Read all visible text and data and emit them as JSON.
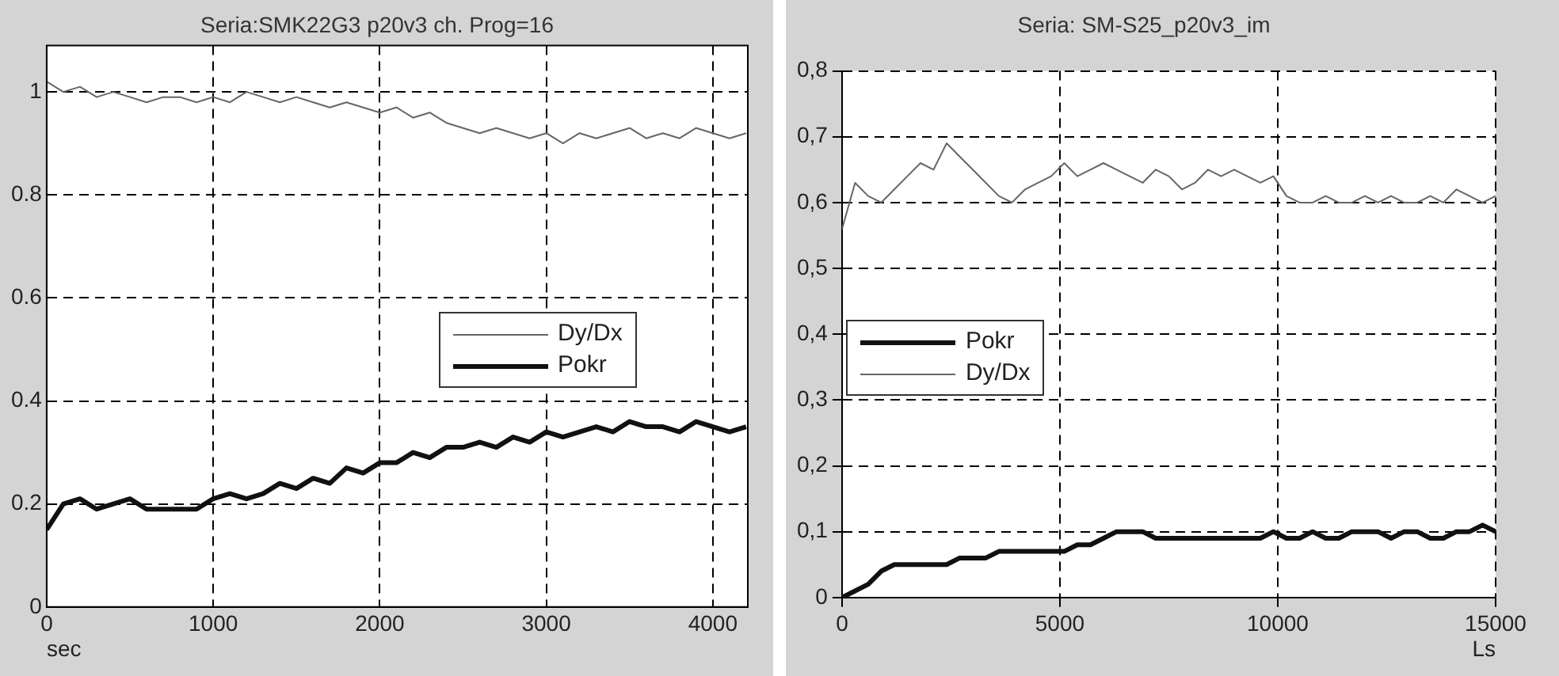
{
  "chart_data": [
    {
      "type": "line",
      "title": "Seria:SMK22G3 p20v3 ch. Prog=16",
      "xlabel": "sec",
      "xlim": [
        0,
        4210
      ],
      "xticks": [
        0,
        1000,
        2000,
        3000,
        4000
      ],
      "ylim": [
        0,
        1.09
      ],
      "yticks": [
        0,
        0.2,
        0.4,
        0.6,
        0.8,
        1
      ],
      "grid": true,
      "legend": "right",
      "marker": "none",
      "x": [
        0,
        100,
        200,
        300,
        400,
        500,
        600,
        700,
        800,
        900,
        1000,
        1100,
        1200,
        1300,
        1400,
        1500,
        1600,
        1700,
        1800,
        1900,
        2000,
        2100,
        2200,
        2300,
        2400,
        2500,
        2600,
        2700,
        2800,
        2900,
        3000,
        3100,
        3200,
        3300,
        3400,
        3500,
        3600,
        3700,
        3800,
        3900,
        4000,
        4100,
        4200
      ],
      "series": [
        {
          "name": "Dy/Dx",
          "color": "#666666",
          "values": [
            1.02,
            1.0,
            1.01,
            0.99,
            1.0,
            0.99,
            0.98,
            0.99,
            0.99,
            0.98,
            0.99,
            0.98,
            1.0,
            0.99,
            0.98,
            0.99,
            0.98,
            0.97,
            0.98,
            0.97,
            0.96,
            0.97,
            0.95,
            0.96,
            0.94,
            0.93,
            0.92,
            0.93,
            0.92,
            0.91,
            0.92,
            0.9,
            0.92,
            0.91,
            0.92,
            0.93,
            0.91,
            0.92,
            0.91,
            0.93,
            0.92,
            0.91,
            0.92
          ]
        },
        {
          "name": "Pokr",
          "color": "#111111",
          "values": [
            0.15,
            0.2,
            0.21,
            0.19,
            0.2,
            0.21,
            0.19,
            0.19,
            0.19,
            0.19,
            0.21,
            0.22,
            0.21,
            0.22,
            0.24,
            0.23,
            0.25,
            0.24,
            0.27,
            0.26,
            0.28,
            0.28,
            0.3,
            0.29,
            0.31,
            0.31,
            0.32,
            0.31,
            0.33,
            0.32,
            0.34,
            0.33,
            0.34,
            0.35,
            0.34,
            0.36,
            0.35,
            0.35,
            0.34,
            0.36,
            0.35,
            0.34,
            0.35
          ]
        }
      ]
    },
    {
      "type": "line",
      "title": "Seria: SM-S25_p20v3_im",
      "xlabel": "Ls",
      "xlim": [
        0,
        15000
      ],
      "xticks": [
        0,
        5000,
        10000,
        15000
      ],
      "ylim": [
        0,
        0.8
      ],
      "yticks": [
        0,
        {
          "value": 0.1,
          "label": "0,1"
        },
        {
          "value": 0.2,
          "label": "0,2"
        },
        {
          "value": 0.3,
          "label": "0,3"
        },
        {
          "value": 0.4,
          "label": "0,4"
        },
        {
          "value": 0.5,
          "label": "0,5"
        },
        {
          "value": 0.6,
          "label": "0,6"
        },
        {
          "value": 0.7,
          "label": "0,7"
        },
        {
          "value": 0.8,
          "label": "0,8"
        }
      ],
      "grid": true,
      "legend": "left",
      "marker": "none",
      "x": [
        0,
        300,
        600,
        900,
        1200,
        1500,
        1800,
        2100,
        2400,
        2700,
        3000,
        3300,
        3600,
        3900,
        4200,
        4500,
        4800,
        5100,
        5400,
        5700,
        6000,
        6300,
        6600,
        6900,
        7200,
        7500,
        7800,
        8100,
        8400,
        8700,
        9000,
        9300,
        9600,
        9900,
        10200,
        10500,
        10800,
        11100,
        11400,
        11700,
        12000,
        12300,
        12600,
        12900,
        13200,
        13500,
        13800,
        14100,
        14400,
        14700,
        15000
      ],
      "series": [
        {
          "name": "Pokr",
          "color": "#111111",
          "values": [
            0.0,
            0.01,
            0.02,
            0.04,
            0.05,
            0.05,
            0.05,
            0.05,
            0.05,
            0.06,
            0.06,
            0.06,
            0.07,
            0.07,
            0.07,
            0.07,
            0.07,
            0.07,
            0.08,
            0.08,
            0.09,
            0.1,
            0.1,
            0.1,
            0.09,
            0.09,
            0.09,
            0.09,
            0.09,
            0.09,
            0.09,
            0.09,
            0.09,
            0.1,
            0.09,
            0.09,
            0.1,
            0.09,
            0.09,
            0.1,
            0.1,
            0.1,
            0.09,
            0.1,
            0.1,
            0.09,
            0.09,
            0.1,
            0.1,
            0.11,
            0.1
          ]
        },
        {
          "name": "Dy/Dx",
          "color": "#666666",
          "values": [
            0.56,
            0.63,
            0.61,
            0.6,
            0.62,
            0.64,
            0.66,
            0.65,
            0.69,
            0.67,
            0.65,
            0.63,
            0.61,
            0.6,
            0.62,
            0.63,
            0.64,
            0.66,
            0.64,
            0.65,
            0.66,
            0.65,
            0.64,
            0.63,
            0.65,
            0.64,
            0.62,
            0.63,
            0.65,
            0.64,
            0.65,
            0.64,
            0.63,
            0.64,
            0.61,
            0.6,
            0.6,
            0.61,
            0.6,
            0.6,
            0.61,
            0.6,
            0.61,
            0.6,
            0.6,
            0.61,
            0.6,
            0.62,
            0.61,
            0.6,
            0.61
          ]
        }
      ]
    }
  ]
}
